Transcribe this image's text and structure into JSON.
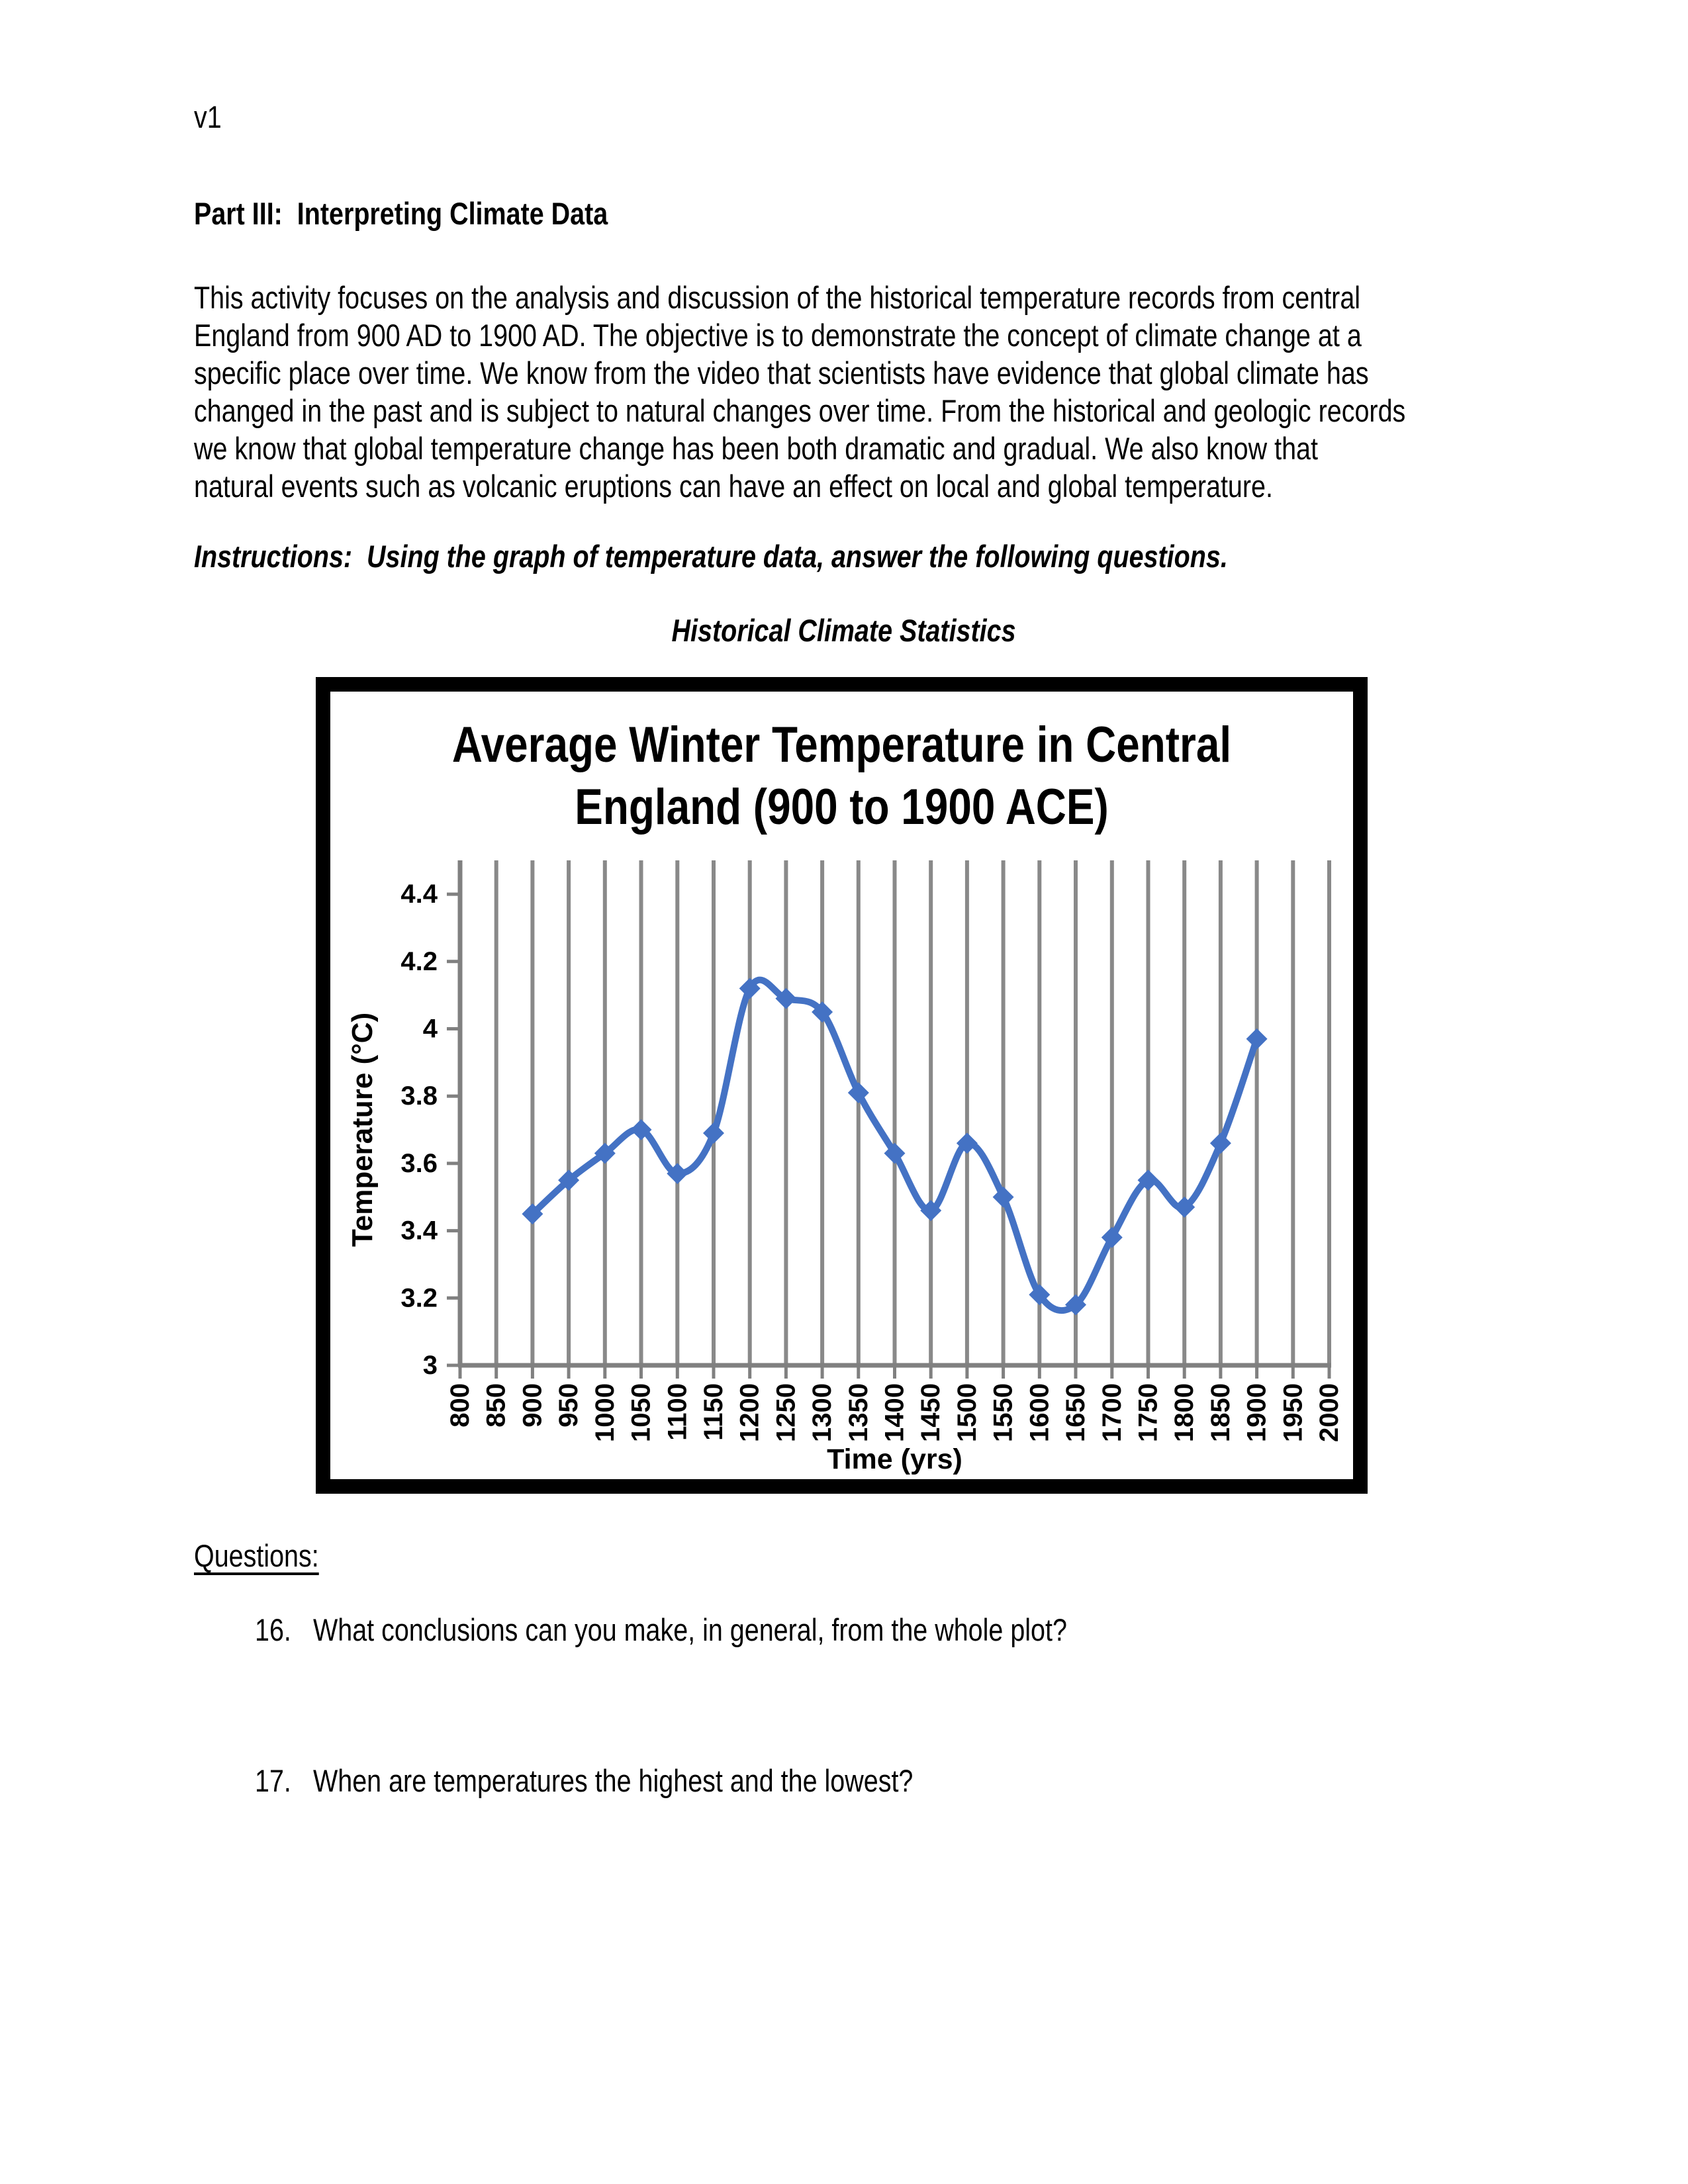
{
  "page": {
    "version_label": "v1",
    "heading": "Part III:  Interpreting Climate Data",
    "intro_lines": [
      "This activity focuses on the analysis and discussion of the historical temperature records from central",
      "England from 900 AD to 1900 AD. The objective is to demonstrate the concept of climate change at a",
      "specific place over time. We know from the video that scientists have evidence that global climate has",
      "changed in the past and is subject to natural changes over time. From the historical and geologic records",
      "we know that global temperature change has been both dramatic and gradual. We also know that",
      "natural events such as volcanic eruptions can have an effect on local and global temperature."
    ],
    "instructions": "Instructions:  Using the graph of temperature data, answer the following questions.",
    "figure_heading": "Historical Climate Statistics",
    "questions_heading": "Questions:",
    "questions": [
      {
        "number": "16.",
        "text": "What conclusions can you make, in general, from the whole plot?"
      },
      {
        "number": "17.",
        "text": "When are temperatures the highest and the lowest?"
      }
    ]
  },
  "chart_data": {
    "type": "line",
    "title": "Average Winter Temperature in Central England (900 to 1900 ACE)",
    "xlabel": "Time (yrs)",
    "ylabel": "Temperature (°C)",
    "x": [
      900,
      950,
      1000,
      1050,
      1100,
      1150,
      1200,
      1250,
      1300,
      1350,
      1400,
      1450,
      1500,
      1550,
      1600,
      1650,
      1700,
      1750,
      1800,
      1850,
      1900
    ],
    "values": [
      3.45,
      3.55,
      3.63,
      3.7,
      3.57,
      3.69,
      4.12,
      4.09,
      4.05,
      3.81,
      3.63,
      3.46,
      3.66,
      3.5,
      3.21,
      3.18,
      3.38,
      3.55,
      3.47,
      3.66,
      3.97
    ],
    "x_ticks": [
      800,
      850,
      900,
      950,
      1000,
      1050,
      1100,
      1150,
      1200,
      1250,
      1300,
      1350,
      1400,
      1450,
      1500,
      1550,
      1600,
      1650,
      1700,
      1750,
      1800,
      1850,
      1900,
      1950,
      2000
    ],
    "y_ticks": [
      "3",
      "3.2",
      "3.4",
      "3.6",
      "3.8",
      "4",
      "4.2",
      "4.4"
    ],
    "xlim": [
      800,
      2000
    ],
    "ylim": [
      3,
      4.5
    ],
    "grid": "vertical-only",
    "legend": "none",
    "smoothed": true,
    "marker": "diamond",
    "x_tick_label_rotation": -90,
    "colors": {
      "line": "#4472C4",
      "marker": "#4472C4",
      "gridline": "#898989",
      "axis": "#808080",
      "text": "#000000",
      "frame_border": "#000000"
    }
  }
}
